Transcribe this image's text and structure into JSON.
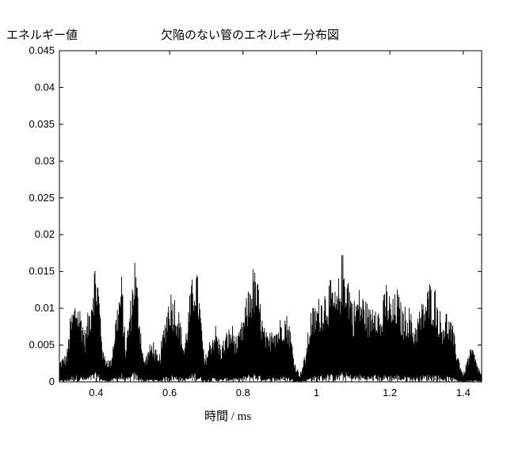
{
  "chart_data": {
    "type": "line",
    "title": "欠陥のない管のエネルギー分布図",
    "ylabel": "エネルギー値",
    "xlabel": "時間 / ms",
    "xlim": [
      0.3,
      1.45
    ],
    "ylim": [
      0,
      0.045
    ],
    "x_ticks": [
      0.4,
      0.6,
      0.8,
      1,
      1.2,
      1.4
    ],
    "x_tick_labels": [
      "0.4",
      "0.6",
      "0.8",
      "1",
      "1.2",
      "1.4"
    ],
    "y_ticks": [
      0,
      0.005,
      0.01,
      0.015,
      0.02,
      0.025,
      0.03,
      0.035,
      0.04,
      0.045
    ],
    "y_tick_labels": [
      "0",
      "0.005",
      "0.01",
      "0.015",
      "0.02",
      "0.025",
      "0.03",
      "0.035",
      "0.04",
      "0.045"
    ],
    "grid": false,
    "line_color": "#000000",
    "series": [
      {
        "envelope": [
          [
            0.3,
            0.003
          ],
          [
            0.32,
            0.004
          ],
          [
            0.33,
            0.009
          ],
          [
            0.345,
            0.012
          ],
          [
            0.36,
            0.01
          ],
          [
            0.37,
            0.007
          ],
          [
            0.385,
            0.012
          ],
          [
            0.395,
            0.017
          ],
          [
            0.405,
            0.015
          ],
          [
            0.42,
            0.004
          ],
          [
            0.44,
            0.003
          ],
          [
            0.455,
            0.01
          ],
          [
            0.47,
            0.015
          ],
          [
            0.48,
            0.005
          ],
          [
            0.495,
            0.012
          ],
          [
            0.505,
            0.018
          ],
          [
            0.515,
            0.012
          ],
          [
            0.53,
            0.003
          ],
          [
            0.545,
            0.005
          ],
          [
            0.555,
            0.006
          ],
          [
            0.57,
            0.003
          ],
          [
            0.585,
            0.008
          ],
          [
            0.6,
            0.013
          ],
          [
            0.615,
            0.012
          ],
          [
            0.625,
            0.01
          ],
          [
            0.64,
            0.005
          ],
          [
            0.655,
            0.012
          ],
          [
            0.67,
            0.017
          ],
          [
            0.68,
            0.013
          ],
          [
            0.695,
            0.003
          ],
          [
            0.71,
            0.006
          ],
          [
            0.725,
            0.008
          ],
          [
            0.74,
            0.005
          ],
          [
            0.755,
            0.007
          ],
          [
            0.77,
            0.008
          ],
          [
            0.785,
            0.006
          ],
          [
            0.8,
            0.009
          ],
          [
            0.815,
            0.013
          ],
          [
            0.828,
            0.016
          ],
          [
            0.84,
            0.014
          ],
          [
            0.855,
            0.008
          ],
          [
            0.87,
            0.006
          ],
          [
            0.88,
            0.009
          ],
          [
            0.895,
            0.008
          ],
          [
            0.91,
            0.01
          ],
          [
            0.925,
            0.009
          ],
          [
            0.94,
            0.003
          ],
          [
            0.955,
            0.001
          ],
          [
            0.97,
            0.004
          ],
          [
            0.985,
            0.01
          ],
          [
            1.0,
            0.011
          ],
          [
            1.02,
            0.013
          ],
          [
            1.04,
            0.014
          ],
          [
            1.055,
            0.012
          ],
          [
            1.07,
            0.018
          ],
          [
            1.085,
            0.016
          ],
          [
            1.1,
            0.011
          ],
          [
            1.115,
            0.013
          ],
          [
            1.13,
            0.012
          ],
          [
            1.145,
            0.01
          ],
          [
            1.16,
            0.013
          ],
          [
            1.175,
            0.009
          ],
          [
            1.19,
            0.014
          ],
          [
            1.205,
            0.011
          ],
          [
            1.22,
            0.013
          ],
          [
            1.235,
            0.01
          ],
          [
            1.25,
            0.011
          ],
          [
            1.265,
            0.008
          ],
          [
            1.28,
            0.01
          ],
          [
            1.295,
            0.012
          ],
          [
            1.31,
            0.014
          ],
          [
            1.325,
            0.013
          ],
          [
            1.34,
            0.009
          ],
          [
            1.355,
            0.01
          ],
          [
            1.37,
            0.008
          ],
          [
            1.385,
            0.004
          ],
          [
            1.4,
            0.001
          ],
          [
            1.415,
            0.004
          ],
          [
            1.425,
            0.005
          ],
          [
            1.435,
            0.003
          ],
          [
            1.45,
            0.001
          ]
        ]
      }
    ]
  }
}
